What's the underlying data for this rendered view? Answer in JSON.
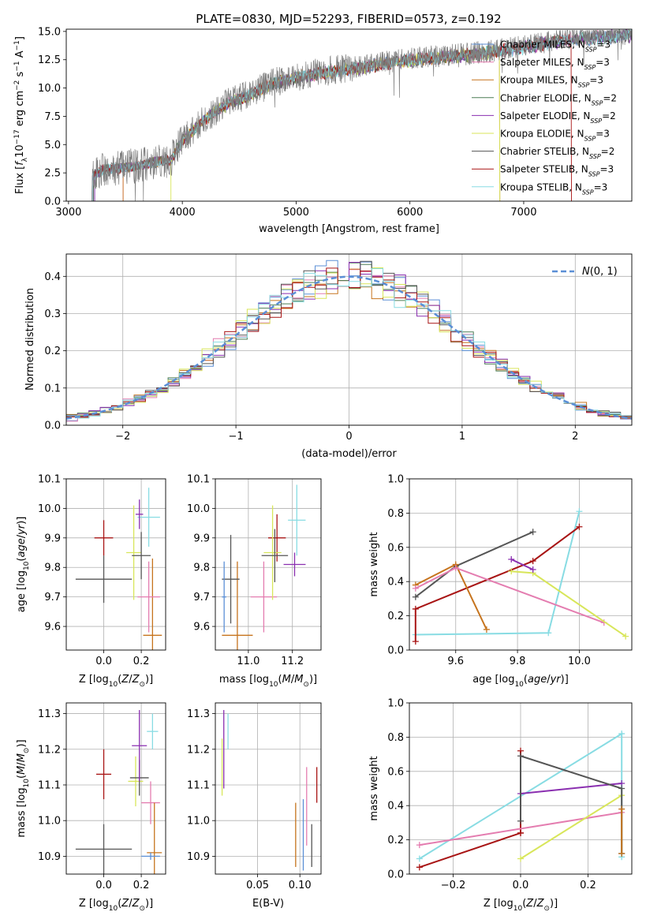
{
  "figure": {
    "title": "PLATE=0830, MJD=52293, FIBERID=0573, z=0.192"
  },
  "models": [
    {
      "name": "Chabrier MILES, N_SSP=3",
      "color": "#5b8fd6"
    },
    {
      "name": "Salpeter MILES, N_SSP=3",
      "color": "#e47db0"
    },
    {
      "name": "Kroupa MILES, N_SSP=3",
      "color": "#c6741e"
    },
    {
      "name": "Chabrier ELODIE, N_SSP=2",
      "color": "#4c7d55"
    },
    {
      "name": "Salpeter ELODIE, N_SSP=2",
      "color": "#8a2fb0"
    },
    {
      "name": "Kroupa ELODIE, N_SSP=3",
      "color": "#d8e65a"
    },
    {
      "name": "Chabrier STELIB, N_SSP=2",
      "color": "#555555"
    },
    {
      "name": "Salpeter STELIB, N_SSP=3",
      "color": "#a81414"
    },
    {
      "name": "Kroupa STELIB, N_SSP=3",
      "color": "#88dce3"
    }
  ],
  "chart_data": [
    {
      "type": "line",
      "id": "spectrum",
      "xlabel": "wavelength [Angstrom, rest frame]",
      "ylabel": "Flux [f_λ 10^-17 erg cm^-2 s^-1 A^-1]",
      "xlim": [
        2980,
        7950
      ],
      "ylim": [
        0,
        15.2
      ],
      "xticks": [
        3000,
        4000,
        5000,
        6000,
        7000
      ],
      "yticks": [
        "0.0",
        "2.5",
        "5.0",
        "7.5",
        "10.0",
        "12.5",
        "15.0"
      ],
      "grid": false,
      "legend": "upper right",
      "spectrum_shape": {
        "x": [
          3200,
          3300,
          3500,
          3700,
          3800,
          3900,
          4000,
          4200,
          4400,
          4600,
          4800,
          5000,
          5200,
          5500,
          5800,
          6000,
          6200,
          6500,
          7000,
          7300,
          7500,
          7950
        ],
        "y": [
          2.2,
          2.8,
          3.0,
          3.3,
          3.6,
          3.6,
          5.4,
          7.3,
          8.7,
          9.5,
          10.5,
          11.0,
          11.4,
          11.8,
          12.3,
          12.6,
          12.8,
          13.0,
          13.7,
          14.3,
          14.5,
          14.8
        ]
      }
    },
    {
      "type": "line",
      "id": "residuals",
      "xlabel": "(data-model)/error",
      "ylabel": "Normed distribution",
      "xlim": [
        -2.5,
        2.5
      ],
      "ylim": [
        0,
        0.46
      ],
      "xticks": [
        "−2",
        "−1",
        "0",
        "1",
        "2"
      ],
      "yticks": [
        "0.0",
        "0.1",
        "0.2",
        "0.3",
        "0.4"
      ],
      "grid": true,
      "legend": "upper right",
      "gaussian_label": "N(0,1)",
      "gaussian_color": "#5b8fd6",
      "histogram_bin_width": 0.1
    },
    {
      "type": "scatter",
      "id": "age-vs-Z",
      "xlabel": "Z [log10(Z/Z_sun)]",
      "ylabel": "age [log10(age/yr)]",
      "xlim": [
        -0.2,
        0.33
      ],
      "ylim": [
        9.52,
        10.1
      ],
      "xticks": [
        "0.0",
        "0.2"
      ],
      "yticks": [
        "9.6",
        "9.7",
        "9.8",
        "9.9",
        "10.0",
        "10.1"
      ],
      "grid": true,
      "points": [
        {
          "x": 0.26,
          "y": 9.57,
          "xerr": 0.05,
          "yerr": 0.26,
          "color": "#c6741e"
        },
        {
          "x": 0.24,
          "y": 9.7,
          "xerr": 0.06,
          "yerr": 0.12,
          "color": "#e47db0"
        },
        {
          "x": 0.0,
          "y": 9.9,
          "xerr": 0.05,
          "yerr": 0.06,
          "color": "#a81414"
        },
        {
          "x": 0.16,
          "y": 9.85,
          "xerr": 0.04,
          "yerr": 0.16,
          "color": "#d8e65a"
        },
        {
          "x": 0.2,
          "y": 9.84,
          "xerr": 0.05,
          "yerr": 0.08,
          "color": "#555555"
        },
        {
          "x": 0.24,
          "y": 9.97,
          "xerr": 0.06,
          "yerr": 0.1,
          "color": "#88dce3"
        },
        {
          "x": 0.19,
          "y": 9.98,
          "xerr": 0.02,
          "yerr": 0.05,
          "color": "#8a2fb0"
        },
        {
          "x": 0.0,
          "y": 9.76,
          "xerr": 0.15,
          "yerr": 0.08,
          "color": "#555555"
        }
      ]
    },
    {
      "type": "scatter",
      "id": "age-vs-mass",
      "xlabel": "mass [log10(M/M_sun)]",
      "ylabel": "",
      "xlim": [
        10.85,
        11.33
      ],
      "ylim": [
        9.52,
        10.1
      ],
      "xticks": [
        "11.0",
        "11.2"
      ],
      "yticks": [
        "9.6",
        "9.7",
        "9.8",
        "9.9",
        "10.0",
        "10.1"
      ],
      "grid": true,
      "points": [
        {
          "x": 10.95,
          "y": 9.57,
          "xerr": 0.07,
          "yerr": 0.25,
          "color": "#c6741e"
        },
        {
          "x": 11.07,
          "y": 9.7,
          "xerr": 0.06,
          "yerr": 0.12,
          "color": "#e47db0"
        },
        {
          "x": 11.13,
          "y": 9.9,
          "xerr": 0.04,
          "yerr": 0.08,
          "color": "#a81414"
        },
        {
          "x": 11.11,
          "y": 9.85,
          "xerr": 0.04,
          "yerr": 0.16,
          "color": "#d8e65a"
        },
        {
          "x": 11.12,
          "y": 9.84,
          "xerr": 0.06,
          "yerr": 0.09,
          "color": "#555555"
        },
        {
          "x": 11.22,
          "y": 9.96,
          "xerr": 0.04,
          "yerr": 0.12,
          "color": "#88dce3"
        },
        {
          "x": 11.21,
          "y": 9.81,
          "xerr": 0.05,
          "yerr": 0.04,
          "color": "#8a2fb0"
        },
        {
          "x": 10.92,
          "y": 9.76,
          "xerr": 0.04,
          "yerr": 0.15,
          "color": "#555555"
        },
        {
          "x": 10.89,
          "y": 9.7,
          "xerr": 0.01,
          "yerr": 0.12,
          "color": "#5b8fd6"
        }
      ]
    },
    {
      "type": "line",
      "id": "massweight-vs-age",
      "xlabel": "age [log10(age/yr)]",
      "ylabel": "mass weight",
      "xlim": [
        9.45,
        10.17
      ],
      "ylim": [
        0,
        1
      ],
      "xticks": [
        "9.6",
        "9.8",
        "10.0"
      ],
      "yticks": [
        "0.0",
        "0.2",
        "0.4",
        "0.6",
        "0.8",
        "1.0"
      ],
      "grid": true,
      "series": [
        {
          "color": "#88dce3",
          "x": [
            9.47,
            9.9,
            10.0
          ],
          "y": [
            0.09,
            0.1,
            0.81
          ]
        },
        {
          "color": "#a81414",
          "x": [
            9.47,
            9.47,
            9.85,
            10.0
          ],
          "y": [
            0.05,
            0.24,
            0.52,
            0.72
          ]
        },
        {
          "color": "#555555",
          "x": [
            9.47,
            9.6,
            9.85
          ],
          "y": [
            0.31,
            0.49,
            0.69
          ]
        },
        {
          "color": "#c6741e",
          "x": [
            9.47,
            9.6,
            9.7
          ],
          "y": [
            0.38,
            0.5,
            0.12
          ]
        },
        {
          "color": "#e47db0",
          "x": [
            9.47,
            9.6,
            10.08
          ],
          "y": [
            0.36,
            0.48,
            0.16
          ]
        },
        {
          "color": "#d8e65a",
          "x": [
            9.78,
            9.85,
            10.15
          ],
          "y": [
            0.46,
            0.45,
            0.08
          ]
        },
        {
          "color": "#8a2fb0",
          "x": [
            9.78,
            9.85
          ],
          "y": [
            0.53,
            0.47
          ]
        }
      ]
    },
    {
      "type": "scatter",
      "id": "mass-vs-Z",
      "xlabel": "Z [log10(Z/Z_sun)]",
      "ylabel": "mass [log10(M/M_sun)]",
      "xlim": [
        -0.2,
        0.33
      ],
      "ylim": [
        10.85,
        11.33
      ],
      "xticks": [
        "0.0",
        "0.2"
      ],
      "yticks": [
        "10.9",
        "11.0",
        "11.1",
        "11.2",
        "11.3"
      ],
      "grid": true,
      "points": [
        {
          "x": 0.0,
          "y": 11.13,
          "xerr": 0.04,
          "yerr": 0.07,
          "color": "#a81414"
        },
        {
          "x": 0.17,
          "y": 11.11,
          "xerr": 0.04,
          "yerr": 0.07,
          "color": "#d8e65a"
        },
        {
          "x": 0.19,
          "y": 11.12,
          "xerr": 0.05,
          "yerr": 0.05,
          "color": "#555555"
        },
        {
          "x": 0.19,
          "y": 11.21,
          "xerr": 0.04,
          "yerr": 0.1,
          "color": "#8a2fb0"
        },
        {
          "x": 0.26,
          "y": 11.25,
          "xerr": 0.03,
          "yerr": 0.05,
          "color": "#88dce3"
        },
        {
          "x": 0.25,
          "y": 11.05,
          "xerr": 0.05,
          "yerr": 0.06,
          "color": "#e47db0"
        },
        {
          "x": 0.0,
          "y": 10.92,
          "xerr": 0.15,
          "yerr": 0.07,
          "color": "#555555"
        },
        {
          "x": 0.27,
          "y": 10.91,
          "xerr": 0.04,
          "yerr": 0.14,
          "color": "#c6741e"
        },
        {
          "x": 0.25,
          "y": 10.9,
          "xerr": 0.05,
          "yerr": 0.01,
          "color": "#5b8fd6"
        }
      ]
    },
    {
      "type": "scatter",
      "id": "mass-vs-ebv",
      "xlabel": "E(B-V)",
      "ylabel": "",
      "xlim": [
        0.0,
        0.125
      ],
      "ylim": [
        10.85,
        11.33
      ],
      "xticks": [
        "0.05",
        "0.10"
      ],
      "yticks": [
        "10.9",
        "11.0",
        "11.1",
        "11.2",
        "11.3"
      ],
      "grid": true,
      "points": [
        {
          "x": 0.01,
          "y": 11.2,
          "yerr": 0.11,
          "color": "#8a2fb0"
        },
        {
          "x": 0.008,
          "y": 11.15,
          "yerr": 0.08,
          "color": "#d8e65a"
        },
        {
          "x": 0.015,
          "y": 11.25,
          "yerr": 0.05,
          "color": "#88dce3"
        },
        {
          "x": 0.095,
          "y": 10.96,
          "yerr": 0.09,
          "color": "#c6741e"
        },
        {
          "x": 0.104,
          "y": 10.96,
          "yerr": 0.1,
          "color": "#5b8fd6"
        },
        {
          "x": 0.108,
          "y": 11.04,
          "yerr": 0.11,
          "color": "#e47db0"
        },
        {
          "x": 0.114,
          "y": 10.93,
          "yerr": 0.06,
          "color": "#555555"
        },
        {
          "x": 0.12,
          "y": 11.1,
          "yerr": 0.05,
          "color": "#a81414"
        }
      ]
    },
    {
      "type": "line",
      "id": "massweight-vs-Z",
      "xlabel": "Z [log10(Z/Z_sun)]",
      "ylabel": "mass weight",
      "xlim": [
        -0.33,
        0.33
      ],
      "ylim": [
        0,
        1
      ],
      "xticks": [
        "−0.2",
        "0.0",
        "0.2"
      ],
      "yticks": [
        "0.0",
        "0.2",
        "0.4",
        "0.6",
        "0.8",
        "1.0"
      ],
      "grid": true,
      "series": [
        {
          "color": "#88dce3",
          "x": [
            -0.3,
            0.3,
            0.3
          ],
          "y": [
            0.09,
            0.82,
            0.1
          ]
        },
        {
          "color": "#a81414",
          "x": [
            -0.3,
            0.0,
            0.0,
            0.0
          ],
          "y": [
            0.04,
            0.24,
            0.72,
            0.24
          ]
        },
        {
          "color": "#e47db0",
          "x": [
            -0.3,
            0.3
          ],
          "y": [
            0.17,
            0.36
          ]
        },
        {
          "color": "#d8e65a",
          "x": [
            0.0,
            0.3
          ],
          "y": [
            0.09,
            0.46
          ]
        },
        {
          "color": "#8a2fb0",
          "x": [
            0.0,
            0.3
          ],
          "y": [
            0.47,
            0.53
          ]
        },
        {
          "color": "#555555",
          "x": [
            0.0,
            0.0,
            0.3,
            0.3
          ],
          "y": [
            0.31,
            0.69,
            0.5,
            0.12
          ]
        },
        {
          "color": "#c6741e",
          "x": [
            0.3,
            0.3
          ],
          "y": [
            0.38,
            0.12
          ]
        }
      ]
    }
  ]
}
